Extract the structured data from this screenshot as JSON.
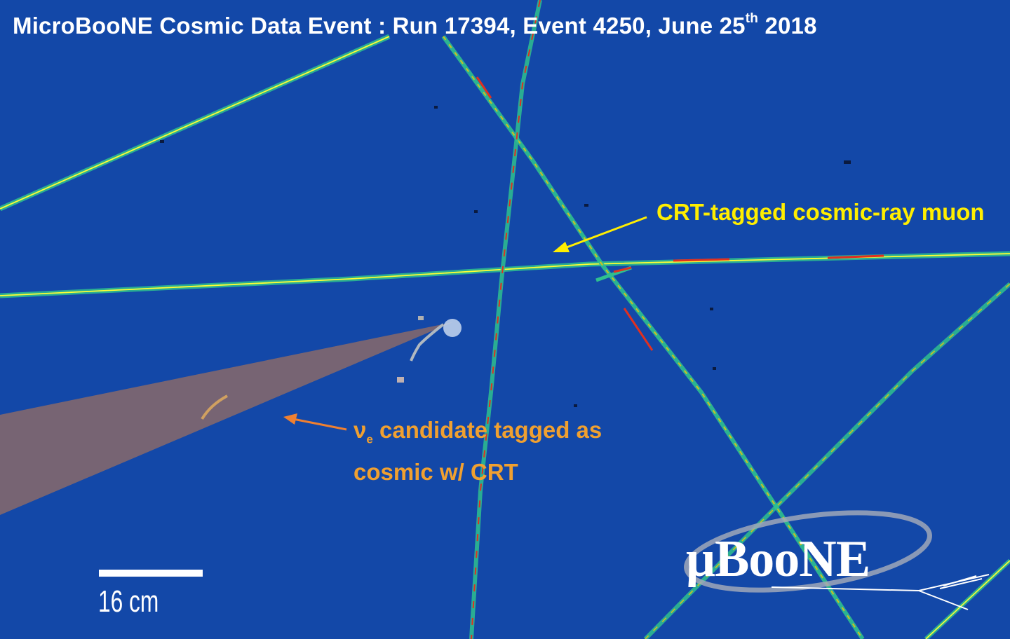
{
  "title": {
    "main": "MicroBooNE Cosmic Data Event : Run 17394, Event 4250, June 25",
    "sup": "th",
    "tail": " 2018"
  },
  "annotations": {
    "muon_label": "CRT-tagged cosmic-ray muon",
    "nue_symbol": "ν",
    "nue_sub": "e",
    "nue_line1": " candidate tagged as",
    "nue_line2": "cosmic w/ CRT"
  },
  "scale_bar": {
    "label": "16 cm"
  },
  "logo": {
    "text": "μBooNE"
  },
  "colors": {
    "background": "#1348a8",
    "muon_arrow": "#ffee00",
    "nue_arrow": "#f08030",
    "highlight_track": "#ffff33",
    "shower_cone": "#8a6a6a"
  }
}
